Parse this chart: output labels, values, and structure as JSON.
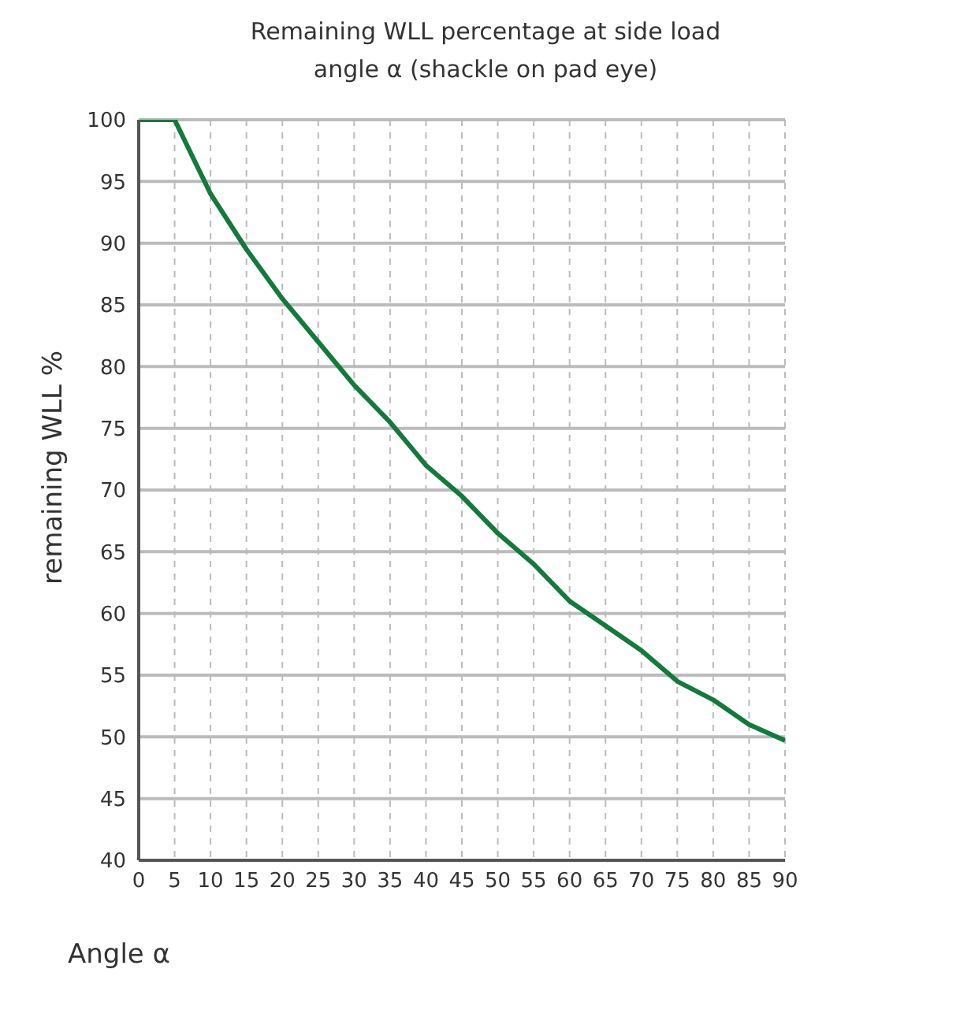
{
  "chart_data": {
    "type": "line",
    "title": "Remaining WLL percentage at side load angle α (shackle on pad eye)",
    "xlabel": "Angle  α",
    "ylabel": "remaining WLL %",
    "x": [
      0,
      5,
      10,
      15,
      20,
      25,
      30,
      35,
      40,
      45,
      50,
      55,
      60,
      65,
      70,
      75,
      80,
      85,
      90
    ],
    "series": [
      {
        "color": "#137a3c",
        "values": [
          100,
          100,
          94,
          89.5,
          85.5,
          82,
          78.5,
          75.5,
          72,
          69.5,
          66.5,
          64,
          61,
          59,
          57,
          54.5,
          53,
          51,
          49.7
        ]
      }
    ],
    "xlim": [
      0,
      90
    ],
    "xticks": [
      0,
      5,
      10,
      15,
      20,
      25,
      30,
      35,
      40,
      45,
      50,
      55,
      60,
      65,
      70,
      75,
      80,
      85,
      90
    ],
    "ylim": [
      40,
      100
    ],
    "yticks": [
      40,
      45,
      50,
      55,
      60,
      65,
      70,
      75,
      80,
      85,
      90,
      95,
      100
    ],
    "grid": true,
    "legend": false,
    "marker": "none",
    "line_style": "solid"
  }
}
